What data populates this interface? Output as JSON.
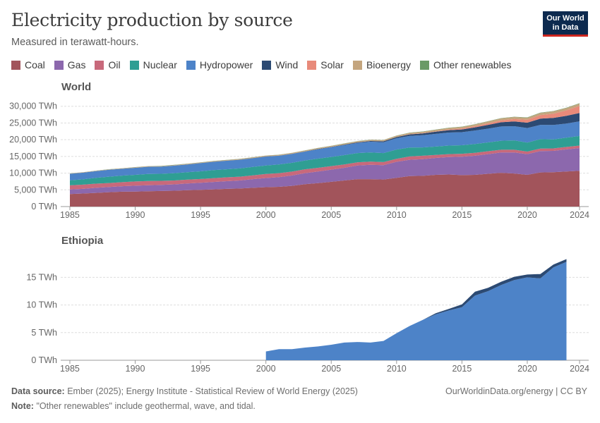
{
  "header": {
    "title": "Electricity production by source",
    "subtitle": "Measured in terawatt-hours.",
    "logo_line1": "Our World",
    "logo_line2": "in Data"
  },
  "legend": [
    {
      "label": "Coal",
      "color": "#a2545b"
    },
    {
      "label": "Gas",
      "color": "#8c68ad"
    },
    {
      "label": "Oil",
      "color": "#c8697b"
    },
    {
      "label": "Nuclear",
      "color": "#2f9e93"
    },
    {
      "label": "Hydropower",
      "color": "#4d83c8"
    },
    {
      "label": "Wind",
      "color": "#2c4a73"
    },
    {
      "label": "Solar",
      "color": "#e88a7a"
    },
    {
      "label": "Bioenergy",
      "color": "#c4a57e"
    },
    {
      "label": "Other renewables",
      "color": "#6a9a66"
    }
  ],
  "chart_data": [
    {
      "type": "area",
      "title": "World",
      "stacked": true,
      "x": [
        1985,
        1986,
        1987,
        1988,
        1989,
        1990,
        1991,
        1992,
        1993,
        1994,
        1995,
        1996,
        1997,
        1998,
        1999,
        2000,
        2001,
        2002,
        2003,
        2004,
        2005,
        2006,
        2007,
        2008,
        2009,
        2010,
        2011,
        2012,
        2013,
        2014,
        2015,
        2016,
        2017,
        2018,
        2019,
        2020,
        2021,
        2022,
        2023,
        2024
      ],
      "series": [
        {
          "name": "Coal",
          "color": "#a2545b",
          "values": [
            3750,
            3900,
            4100,
            4300,
            4450,
            4500,
            4600,
            4650,
            4750,
            4900,
            5000,
            5150,
            5300,
            5400,
            5600,
            5800,
            5900,
            6200,
            6700,
            7000,
            7400,
            7800,
            8200,
            8200,
            8100,
            8600,
            9100,
            9200,
            9500,
            9600,
            9400,
            9500,
            9800,
            10100,
            9900,
            9500,
            10200,
            10300,
            10500,
            10700
          ]
        },
        {
          "name": "Gas",
          "color": "#8c68ad",
          "values": [
            1350,
            1400,
            1500,
            1550,
            1650,
            1750,
            1800,
            1850,
            1900,
            2000,
            2100,
            2200,
            2300,
            2400,
            2600,
            2750,
            2900,
            3100,
            3300,
            3500,
            3650,
            3800,
            4100,
            4300,
            4300,
            4800,
            4900,
            5000,
            5050,
            5200,
            5500,
            5700,
            5900,
            6100,
            6300,
            6200,
            6400,
            6350,
            6600,
            6800
          ]
        },
        {
          "name": "Oil",
          "color": "#c8697b",
          "values": [
            1250,
            1250,
            1250,
            1200,
            1200,
            1250,
            1250,
            1200,
            1150,
            1150,
            1150,
            1150,
            1150,
            1150,
            1150,
            1200,
            1200,
            1150,
            1150,
            1100,
            1050,
            1000,
            950,
            950,
            900,
            900,
            1000,
            1000,
            900,
            900,
            900,
            900,
            850,
            800,
            800,
            750,
            750,
            750,
            750,
            750
          ]
        },
        {
          "name": "Nuclear",
          "color": "#2f9e93",
          "values": [
            1500,
            1600,
            1750,
            1900,
            1950,
            2000,
            2100,
            2100,
            2200,
            2250,
            2300,
            2400,
            2400,
            2450,
            2500,
            2550,
            2600,
            2650,
            2650,
            2750,
            2750,
            2800,
            2750,
            2750,
            2700,
            2750,
            2650,
            2500,
            2500,
            2550,
            2550,
            2600,
            2650,
            2700,
            2800,
            2700,
            2800,
            2700,
            2750,
            2850
          ]
        },
        {
          "name": "Hydropower",
          "color": "#4d83c8",
          "values": [
            1950,
            2000,
            2000,
            2050,
            2050,
            2100,
            2150,
            2150,
            2250,
            2300,
            2450,
            2500,
            2550,
            2600,
            2600,
            2650,
            2600,
            2650,
            2650,
            2800,
            2900,
            3000,
            3050,
            3200,
            3250,
            3400,
            3500,
            3650,
            3800,
            3900,
            3900,
            4050,
            4100,
            4250,
            4250,
            4350,
            4300,
            4300,
            4250,
            4400
          ]
        },
        {
          "name": "Wind",
          "color": "#2c4a73",
          "values": [
            0,
            0,
            0,
            0,
            0,
            5,
            5,
            5,
            10,
            10,
            10,
            15,
            20,
            25,
            30,
            35,
            40,
            50,
            60,
            80,
            100,
            130,
            170,
            220,
            270,
            340,
            440,
            520,
            640,
            700,
            830,
            960,
            1140,
            1270,
            1420,
            1600,
            1850,
            2100,
            2300,
            2500
          ]
        },
        {
          "name": "Solar",
          "color": "#e88a7a",
          "values": [
            0,
            0,
            0,
            0,
            0,
            0,
            0,
            0,
            0,
            0,
            0,
            0,
            0,
            0,
            0,
            1,
            2,
            2,
            3,
            3,
            4,
            6,
            8,
            12,
            21,
            34,
            65,
            100,
            140,
            200,
            260,
            330,
            450,
            580,
            710,
            850,
            1050,
            1300,
            1630,
            2100
          ]
        },
        {
          "name": "Bioenergy",
          "color": "#c4a57e",
          "values": [
            100,
            110,
            120,
            130,
            140,
            150,
            155,
            160,
            170,
            175,
            180,
            190,
            200,
            210,
            220,
            230,
            230,
            240,
            250,
            270,
            280,
            290,
            300,
            320,
            330,
            360,
            390,
            410,
            440,
            470,
            500,
            520,
            560,
            580,
            600,
            630,
            660,
            690,
            700,
            710
          ]
        },
        {
          "name": "Other renewables",
          "color": "#6a9a66",
          "values": [
            35,
            37,
            38,
            40,
            42,
            45,
            46,
            47,
            48,
            49,
            50,
            51,
            52,
            52,
            53,
            54,
            55,
            56,
            57,
            58,
            60,
            61,
            62,
            63,
            64,
            66,
            68,
            70,
            72,
            76,
            80,
            82,
            85,
            88,
            90,
            92,
            93,
            94,
            96,
            98
          ]
        }
      ],
      "y_ticks": [
        "0 TWh",
        "5,000 TWh",
        "10,000 TWh",
        "15,000 TWh",
        "20,000 TWh",
        "25,000 TWh",
        "30,000 TWh"
      ],
      "y_tick_values": [
        0,
        5000,
        10000,
        15000,
        20000,
        25000,
        30000
      ],
      "ylim": [
        0,
        31000
      ],
      "x_ticks": [
        "1985",
        "1990",
        "1995",
        "2000",
        "2005",
        "2010",
        "2015",
        "2020",
        "2024"
      ],
      "x_tick_values": [
        1985,
        1990,
        1995,
        2000,
        2005,
        2010,
        2015,
        2020,
        2024
      ],
      "grid": true
    },
    {
      "type": "area",
      "title": "Ethiopia",
      "stacked": true,
      "x": [
        2000,
        2001,
        2002,
        2003,
        2004,
        2005,
        2006,
        2007,
        2008,
        2009,
        2010,
        2011,
        2012,
        2013,
        2014,
        2015,
        2016,
        2017,
        2018,
        2019,
        2020,
        2021,
        2022,
        2023
      ],
      "series": [
        {
          "name": "Hydropower",
          "color": "#4d83c8",
          "values": [
            1.6,
            2.0,
            2.0,
            2.3,
            2.5,
            2.8,
            3.2,
            3.3,
            3.2,
            3.5,
            4.9,
            6.2,
            7.3,
            8.3,
            9.0,
            9.6,
            11.7,
            12.5,
            13.6,
            14.5,
            15.0,
            14.8,
            16.8,
            17.8
          ]
        },
        {
          "name": "Wind",
          "color": "#2c4a73",
          "values": [
            0,
            0,
            0,
            0,
            0,
            0,
            0,
            0,
            0,
            0,
            0,
            0,
            0,
            0.2,
            0.3,
            0.5,
            0.7,
            0.6,
            0.6,
            0.6,
            0.5,
            0.8,
            0.5,
            0.5
          ]
        }
      ],
      "y_ticks": [
        "0 TWh",
        "5 TWh",
        "10 TWh",
        "15 TWh"
      ],
      "y_tick_values": [
        0,
        5,
        10,
        15
      ],
      "ylim": [
        0,
        19
      ],
      "x_ticks": [
        "1985",
        "1990",
        "1995",
        "2000",
        "2005",
        "2010",
        "2015",
        "2020",
        "2024"
      ],
      "x_tick_values": [
        1985,
        1990,
        1995,
        2000,
        2005,
        2010,
        2015,
        2020,
        2024
      ],
      "grid": true
    }
  ],
  "footer": {
    "source_label": "Data source:",
    "source_text": "Ember (2025); Energy Institute - Statistical Review of World Energy (2025)",
    "note_label": "Note:",
    "note_text": "\"Other renewables\" include geothermal, wave, and tidal.",
    "credit": "OurWorldinData.org/energy | CC BY"
  }
}
